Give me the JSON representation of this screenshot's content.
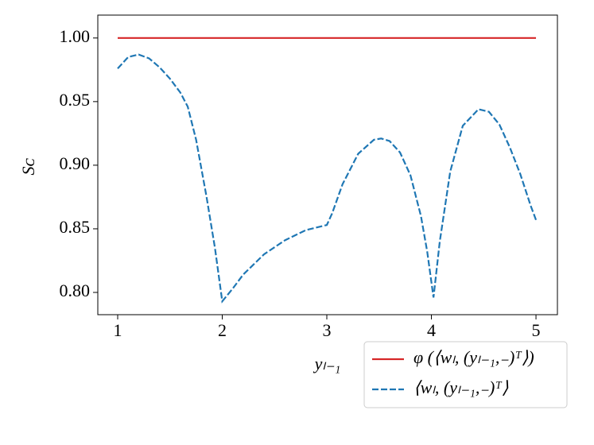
{
  "chart_data": {
    "type": "line",
    "xlabel": "yₗ₋₁",
    "ylabel": "Sᴄ",
    "xlim": [
      0.81,
      5.205
    ],
    "xticks": [
      1,
      2,
      3,
      4,
      5
    ],
    "ylim": [
      0.7825,
      1.018
    ],
    "yticks": [
      {
        "value": 0.8,
        "label": "0.80"
      },
      {
        "value": 0.85,
        "label": "0.85"
      },
      {
        "value": 0.9,
        "label": "0.90"
      },
      {
        "value": 0.95,
        "label": "0.95"
      },
      {
        "value": 1.0,
        "label": "1.00"
      }
    ],
    "legend": "lower right",
    "series": [
      {
        "name": "φ (⟨wₗ, (yₗ₋₁,₋)ᵀ⟩)",
        "color": "#d62728",
        "dash": false,
        "x": [
          1,
          5
        ],
        "values": [
          1.0,
          1.0
        ]
      },
      {
        "name": "⟨wₗ, (yₗ₋₁,₋)ᵀ⟩",
        "color": "#1f77b4",
        "dash": true,
        "x": [
          1,
          1.1,
          1.2,
          1.3,
          1.4,
          1.5,
          1.6,
          1.67,
          1.75,
          1.85,
          1.93,
          2.0,
          2.1,
          2.2,
          2.4,
          2.6,
          2.8,
          3.0,
          3.05,
          3.15,
          3.3,
          3.45,
          3.52,
          3.6,
          3.7,
          3.8,
          3.9,
          3.96,
          4.02,
          4.08,
          4.18,
          4.3,
          4.45,
          4.55,
          4.65,
          4.75,
          4.85,
          4.95,
          5.0
        ],
        "values": [
          0.976,
          0.985,
          0.987,
          0.984,
          0.977,
          0.968,
          0.957,
          0.946,
          0.92,
          0.875,
          0.835,
          0.793,
          0.803,
          0.814,
          0.83,
          0.841,
          0.849,
          0.853,
          0.862,
          0.885,
          0.909,
          0.92,
          0.921,
          0.919,
          0.91,
          0.892,
          0.86,
          0.832,
          0.796,
          0.84,
          0.895,
          0.931,
          0.944,
          0.942,
          0.932,
          0.914,
          0.893,
          0.868,
          0.857
        ]
      }
    ]
  }
}
